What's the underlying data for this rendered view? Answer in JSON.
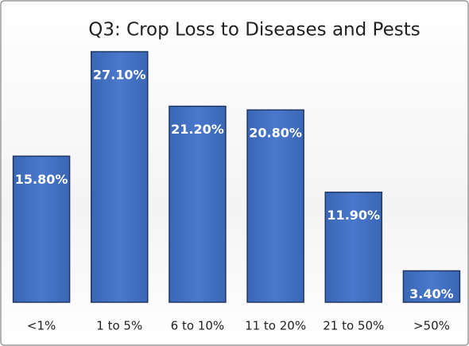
{
  "chart_data": {
    "type": "bar",
    "title": "Q3: Crop Loss to Diseases and Pests",
    "categories": [
      "<1%",
      "1 to 5%",
      "6 to 10%",
      "11 to 20%",
      "21 to 50%",
      ">50%"
    ],
    "values": [
      15.8,
      27.1,
      21.2,
      20.8,
      11.9,
      3.4
    ],
    "value_labels": [
      "15.80%",
      "27.10%",
      "21.20%",
      "20.80%",
      "11.90%",
      "3.40%"
    ],
    "color": "#4472c4"
  }
}
